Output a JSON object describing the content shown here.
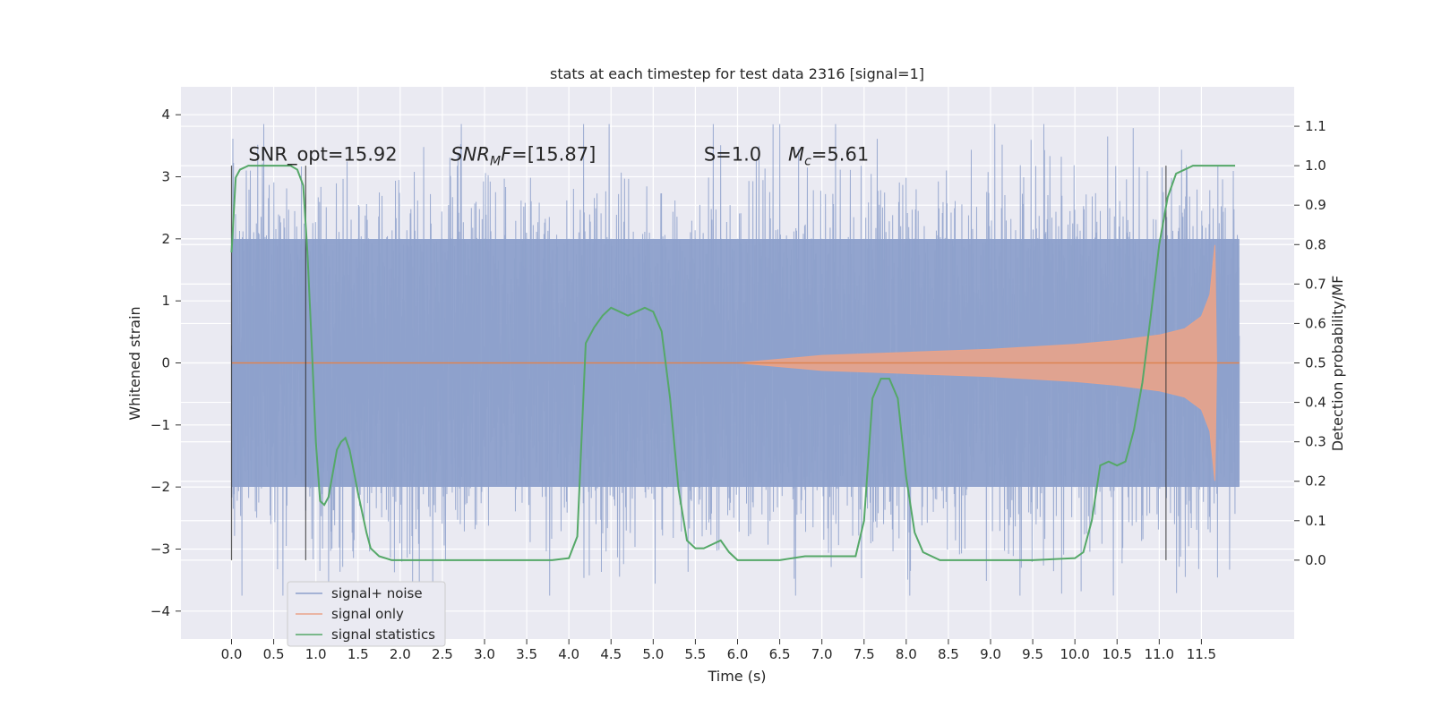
{
  "chart_data": {
    "type": "line",
    "title": "stats at each timestep for test data 2316 [signal=1]",
    "xlabel": "Time (s)",
    "ylabel_left": "Whitened strain",
    "ylabel_right": "Detection probability/MF",
    "xlim": [
      -0.6,
      12.6
    ],
    "ylim_left": [
      -4.45,
      4.45
    ],
    "ylim_right": [
      -0.2,
      1.2
    ],
    "x_ticks": [
      "0.0",
      "0.5",
      "1.0",
      "1.5",
      "2.0",
      "2.5",
      "3.0",
      "3.5",
      "4.0",
      "4.5",
      "5.0",
      "5.5",
      "6.0",
      "6.5",
      "7.0",
      "7.5",
      "8.0",
      "8.5",
      "9.0",
      "9.5",
      "10.0",
      "10.5",
      "11.0",
      "11.5"
    ],
    "y_ticks_left": [
      "4",
      "3",
      "2",
      "1",
      "0",
      "−1",
      "−2",
      "−3",
      "−4"
    ],
    "y_ticks_right": [
      "1.1",
      "1.0",
      "0.9",
      "0.8",
      "0.7",
      "0.6",
      "0.5",
      "0.4",
      "0.3",
      "0.2",
      "0.1",
      "0.0"
    ],
    "grid": true,
    "annotations": [
      {
        "label": "SNR_opt=15.92",
        "x": 0.2
      },
      {
        "label": "SNR",
        "sub": "M",
        "suffix": "F=[15.87]",
        "x": 2.6
      },
      {
        "label": "S",
        "suffix": "=1.0",
        "x": 5.6
      },
      {
        "label": "M",
        "sub": "c",
        "suffix": "=5.61",
        "x": 6.6
      }
    ],
    "vertical_markers": [
      0.0,
      0.88,
      11.08
    ],
    "series": [
      {
        "name": "signal+ noise",
        "color": "#8da0cb",
        "kind": "noise",
        "x_range": [
          0.0,
          11.95
        ],
        "envelope_upper": 2.0,
        "envelope_lower": -2.0
      },
      {
        "name": "signal only",
        "color": "#e9a38a",
        "kind": "chirp",
        "x_range": [
          0.0,
          11.95
        ],
        "x": [
          0.0,
          6.0,
          7.0,
          8.0,
          9.0,
          10.0,
          10.5,
          11.0,
          11.3,
          11.5,
          11.6,
          11.66,
          11.68
        ],
        "amplitude": [
          0.0,
          0.0,
          0.12,
          0.17,
          0.22,
          0.3,
          0.36,
          0.45,
          0.55,
          0.75,
          1.1,
          1.9,
          0.0
        ]
      },
      {
        "name": "signal statistics",
        "color": "#55a868",
        "kind": "line",
        "axis": "right",
        "x": [
          0.0,
          0.05,
          0.1,
          0.2,
          0.4,
          0.6,
          0.7,
          0.78,
          0.85,
          0.9,
          0.95,
          1.0,
          1.05,
          1.1,
          1.15,
          1.2,
          1.25,
          1.3,
          1.35,
          1.4,
          1.5,
          1.6,
          1.65,
          1.75,
          1.9,
          2.2,
          2.6,
          3.0,
          3.5,
          3.8,
          4.0,
          4.1,
          4.2,
          4.3,
          4.4,
          4.5,
          4.6,
          4.7,
          4.8,
          4.9,
          5.0,
          5.1,
          5.2,
          5.3,
          5.4,
          5.5,
          5.6,
          5.7,
          5.8,
          5.9,
          6.0,
          6.5,
          6.8,
          7.2,
          7.4,
          7.5,
          7.6,
          7.7,
          7.8,
          7.9,
          8.0,
          8.1,
          8.2,
          8.4,
          8.8,
          9.5,
          10.0,
          10.1,
          10.2,
          10.3,
          10.4,
          10.5,
          10.6,
          10.7,
          10.8,
          10.9,
          11.0,
          11.1,
          11.2,
          11.3,
          11.4,
          11.5,
          11.6,
          11.7,
          11.8,
          11.9
        ],
        "y": [
          0.78,
          0.97,
          0.99,
          1.0,
          1.0,
          1.0,
          1.0,
          0.99,
          0.95,
          0.78,
          0.55,
          0.3,
          0.15,
          0.14,
          0.16,
          0.22,
          0.28,
          0.3,
          0.31,
          0.28,
          0.17,
          0.07,
          0.03,
          0.01,
          0.0,
          0.0,
          0.0,
          0.0,
          0.0,
          0.0,
          0.005,
          0.06,
          0.55,
          0.59,
          0.62,
          0.64,
          0.63,
          0.62,
          0.63,
          0.64,
          0.63,
          0.58,
          0.41,
          0.18,
          0.05,
          0.03,
          0.03,
          0.04,
          0.05,
          0.02,
          0.0,
          0.0,
          0.01,
          0.01,
          0.01,
          0.1,
          0.41,
          0.46,
          0.46,
          0.41,
          0.21,
          0.07,
          0.02,
          0.0,
          0.0,
          0.0,
          0.005,
          0.02,
          0.1,
          0.24,
          0.25,
          0.24,
          0.25,
          0.33,
          0.45,
          0.62,
          0.8,
          0.92,
          0.98,
          0.99,
          1.0,
          1.0,
          1.0,
          1.0,
          1.0,
          1.0
        ]
      }
    ],
    "legend": {
      "placement": "lower-left",
      "entries": [
        "signal+ noise",
        "signal only",
        "signal statistics"
      ]
    }
  }
}
